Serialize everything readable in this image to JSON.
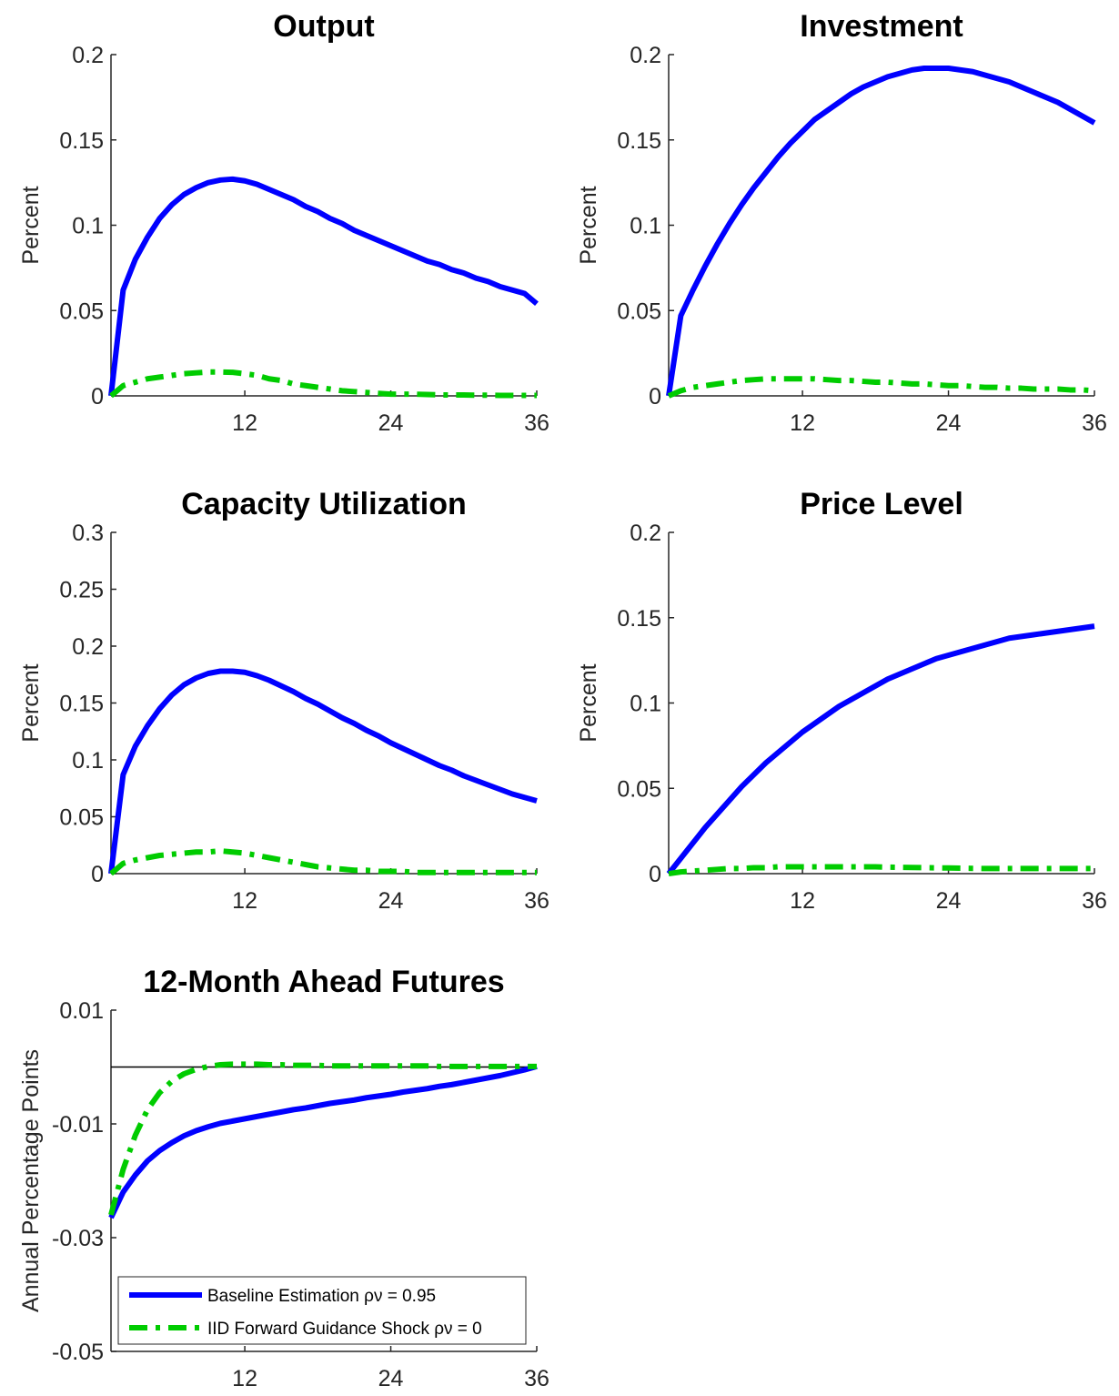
{
  "chart_data": [
    {
      "type": "line",
      "title": "Output",
      "ylabel": "Percent",
      "x": [
        1,
        2,
        3,
        4,
        5,
        6,
        7,
        8,
        9,
        10,
        11,
        12,
        13,
        14,
        15,
        16,
        17,
        18,
        19,
        20,
        21,
        22,
        23,
        24,
        25,
        26,
        27,
        28,
        29,
        30,
        31,
        32,
        33,
        34,
        35,
        36
      ],
      "xlim": [
        1,
        36
      ],
      "xticks": [
        12,
        24,
        36
      ],
      "ylim": [
        0,
        0.2
      ],
      "yticks": [
        0,
        0.05,
        0.1,
        0.15,
        0.2
      ],
      "series": [
        {
          "color": "#0000ff",
          "dash": "solid",
          "values": [
            0,
            0.062,
            0.08,
            0.093,
            0.104,
            0.112,
            0.118,
            0.122,
            0.125,
            0.1265,
            0.127,
            0.126,
            0.124,
            0.121,
            0.118,
            0.115,
            0.111,
            0.108,
            0.104,
            0.101,
            0.097,
            0.094,
            0.091,
            0.088,
            0.085,
            0.082,
            0.079,
            0.077,
            0.074,
            0.072,
            0.069,
            0.067,
            0.064,
            0.062,
            0.06,
            0.054
          ]
        },
        {
          "color": "#00cc00",
          "dash": "dashdot",
          "values": [
            0,
            0.006,
            0.008,
            0.01,
            0.011,
            0.012,
            0.013,
            0.0135,
            0.014,
            0.014,
            0.0138,
            0.013,
            0.012,
            0.01,
            0.009,
            0.007,
            0.006,
            0.005,
            0.004,
            0.003,
            0.0025,
            0.002,
            0.0015,
            0.001,
            0.001,
            0.001,
            0.0008,
            0.0006,
            0.0005,
            0.0005,
            0.0004,
            0.0004,
            0.0003,
            0.0003,
            0.0003,
            0.0003
          ]
        }
      ]
    },
    {
      "type": "line",
      "title": "Investment",
      "ylabel": "Percent",
      "x": [
        1,
        2,
        3,
        4,
        5,
        6,
        7,
        8,
        9,
        10,
        11,
        12,
        13,
        14,
        15,
        16,
        17,
        18,
        19,
        20,
        21,
        22,
        23,
        24,
        25,
        26,
        27,
        28,
        29,
        30,
        31,
        32,
        33,
        34,
        35,
        36
      ],
      "xlim": [
        1,
        36
      ],
      "xticks": [
        12,
        24,
        36
      ],
      "ylim": [
        0,
        0.2
      ],
      "yticks": [
        0,
        0.05,
        0.1,
        0.15,
        0.2
      ],
      "series": [
        {
          "color": "#0000ff",
          "dash": "solid",
          "values": [
            0,
            0.047,
            0.062,
            0.076,
            0.089,
            0.101,
            0.112,
            0.122,
            0.131,
            0.14,
            0.148,
            0.155,
            0.162,
            0.167,
            0.172,
            0.177,
            0.181,
            0.184,
            0.187,
            0.189,
            0.191,
            0.192,
            0.192,
            0.192,
            0.191,
            0.19,
            0.188,
            0.186,
            0.184,
            0.181,
            0.178,
            0.175,
            0.172,
            0.168,
            0.164,
            0.16
          ]
        },
        {
          "color": "#00cc00",
          "dash": "dashdot",
          "values": [
            0,
            0.003,
            0.005,
            0.006,
            0.007,
            0.008,
            0.009,
            0.0095,
            0.01,
            0.01,
            0.01,
            0.01,
            0.01,
            0.0095,
            0.009,
            0.009,
            0.0085,
            0.008,
            0.008,
            0.0075,
            0.007,
            0.007,
            0.0065,
            0.006,
            0.006,
            0.0055,
            0.005,
            0.005,
            0.0045,
            0.0045,
            0.004,
            0.004,
            0.004,
            0.0035,
            0.0035,
            0.003
          ]
        }
      ]
    },
    {
      "type": "line",
      "title": "Capacity Utilization",
      "ylabel": "Percent",
      "x": [
        1,
        2,
        3,
        4,
        5,
        6,
        7,
        8,
        9,
        10,
        11,
        12,
        13,
        14,
        15,
        16,
        17,
        18,
        19,
        20,
        21,
        22,
        23,
        24,
        25,
        26,
        27,
        28,
        29,
        30,
        31,
        32,
        33,
        34,
        35,
        36
      ],
      "xlim": [
        1,
        36
      ],
      "xticks": [
        12,
        24,
        36
      ],
      "ylim": [
        0,
        0.3
      ],
      "yticks": [
        0,
        0.05,
        0.1,
        0.15,
        0.2,
        0.25,
        0.3
      ],
      "series": [
        {
          "color": "#0000ff",
          "dash": "solid",
          "values": [
            0,
            0.087,
            0.112,
            0.13,
            0.145,
            0.157,
            0.166,
            0.172,
            0.176,
            0.178,
            0.178,
            0.177,
            0.174,
            0.17,
            0.165,
            0.16,
            0.154,
            0.149,
            0.143,
            0.137,
            0.132,
            0.126,
            0.121,
            0.115,
            0.11,
            0.105,
            0.1,
            0.095,
            0.091,
            0.086,
            0.082,
            0.078,
            0.074,
            0.07,
            0.067,
            0.064
          ]
        },
        {
          "color": "#00cc00",
          "dash": "dashdot",
          "values": [
            0,
            0.009,
            0.012,
            0.014,
            0.016,
            0.017,
            0.018,
            0.019,
            0.019,
            0.02,
            0.019,
            0.018,
            0.016,
            0.014,
            0.012,
            0.01,
            0.008,
            0.006,
            0.005,
            0.004,
            0.003,
            0.003,
            0.002,
            0.002,
            0.002,
            0.001,
            0.001,
            0.001,
            0.001,
            0.001,
            0.001,
            0.001,
            0.001,
            0.001,
            0.001,
            0.001
          ]
        }
      ]
    },
    {
      "type": "line",
      "title": "Price Level",
      "ylabel": "Percent",
      "x": [
        1,
        2,
        3,
        4,
        5,
        6,
        7,
        8,
        9,
        10,
        11,
        12,
        13,
        14,
        15,
        16,
        17,
        18,
        19,
        20,
        21,
        22,
        23,
        24,
        25,
        26,
        27,
        28,
        29,
        30,
        31,
        32,
        33,
        34,
        35,
        36
      ],
      "xlim": [
        1,
        36
      ],
      "xticks": [
        12,
        24,
        36
      ],
      "ylim": [
        0,
        0.2
      ],
      "yticks": [
        0,
        0.05,
        0.1,
        0.15,
        0.2
      ],
      "series": [
        {
          "color": "#0000ff",
          "dash": "solid",
          "values": [
            0,
            0.009,
            0.018,
            0.027,
            0.035,
            0.043,
            0.051,
            0.058,
            0.065,
            0.071,
            0.077,
            0.083,
            0.088,
            0.093,
            0.098,
            0.102,
            0.106,
            0.11,
            0.114,
            0.117,
            0.12,
            0.123,
            0.126,
            0.128,
            0.13,
            0.132,
            0.134,
            0.136,
            0.138,
            0.139,
            0.14,
            0.141,
            0.142,
            0.143,
            0.144,
            0.145
          ]
        },
        {
          "color": "#00cc00",
          "dash": "dashdot",
          "values": [
            0,
            0.001,
            0.0015,
            0.002,
            0.0025,
            0.003,
            0.003,
            0.0035,
            0.0035,
            0.004,
            0.004,
            0.004,
            0.004,
            0.004,
            0.004,
            0.004,
            0.004,
            0.004,
            0.0038,
            0.0037,
            0.0036,
            0.0035,
            0.0034,
            0.0033,
            0.0032,
            0.0031,
            0.003,
            0.003,
            0.003,
            0.003,
            0.003,
            0.003,
            0.003,
            0.003,
            0.003,
            0.003
          ]
        }
      ]
    },
    {
      "type": "line",
      "title": "12-Month Ahead Futures",
      "ylabel": "Annual Percentage Points",
      "x": [
        1,
        2,
        3,
        4,
        5,
        6,
        7,
        8,
        9,
        10,
        11,
        12,
        13,
        14,
        15,
        16,
        17,
        18,
        19,
        20,
        21,
        22,
        23,
        24,
        25,
        26,
        27,
        28,
        29,
        30,
        31,
        32,
        33,
        34,
        35,
        36
      ],
      "xlim": [
        1,
        36
      ],
      "xticks": [
        12,
        24,
        36
      ],
      "ylim": [
        -0.05,
        0.01
      ],
      "yticks": [
        -0.05,
        -0.03,
        -0.01,
        0.01
      ],
      "hline": 0,
      "legend": "lower left",
      "series": [
        {
          "name": "Baseline Estimation ρν = 0.95",
          "color": "#0000ff",
          "dash": "solid",
          "values": [
            -0.0265,
            -0.022,
            -0.019,
            -0.0165,
            -0.0147,
            -0.0133,
            -0.0121,
            -0.0112,
            -0.0105,
            -0.0099,
            -0.0095,
            -0.0091,
            -0.0087,
            -0.0083,
            -0.0079,
            -0.0075,
            -0.0072,
            -0.0068,
            -0.0064,
            -0.0061,
            -0.0058,
            -0.0054,
            -0.0051,
            -0.0048,
            -0.0044,
            -0.0041,
            -0.0038,
            -0.0034,
            -0.0031,
            -0.0027,
            -0.0023,
            -0.0019,
            -0.0015,
            -0.001,
            -0.0005,
            0.0001
          ]
        },
        {
          "name": "IID Forward Guidance Shock ρν = 0",
          "color": "#00cc00",
          "dash": "dashdot",
          "values": [
            -0.026,
            -0.018,
            -0.012,
            -0.0075,
            -0.0045,
            -0.0025,
            -0.0012,
            -0.0004,
            0.0001,
            0.0004,
            0.0005,
            0.0005,
            0.0005,
            0.0004,
            0.0004,
            0.0003,
            0.0003,
            0.0003,
            0.0002,
            0.0002,
            0.0002,
            0.0002,
            0.0002,
            0.0002,
            0.0002,
            0.0002,
            0.0002,
            0.0001,
            0.0001,
            0.0001,
            0.0001,
            0.0001,
            0.0001,
            0.0001,
            0.0001,
            0.0001
          ]
        }
      ]
    }
  ]
}
